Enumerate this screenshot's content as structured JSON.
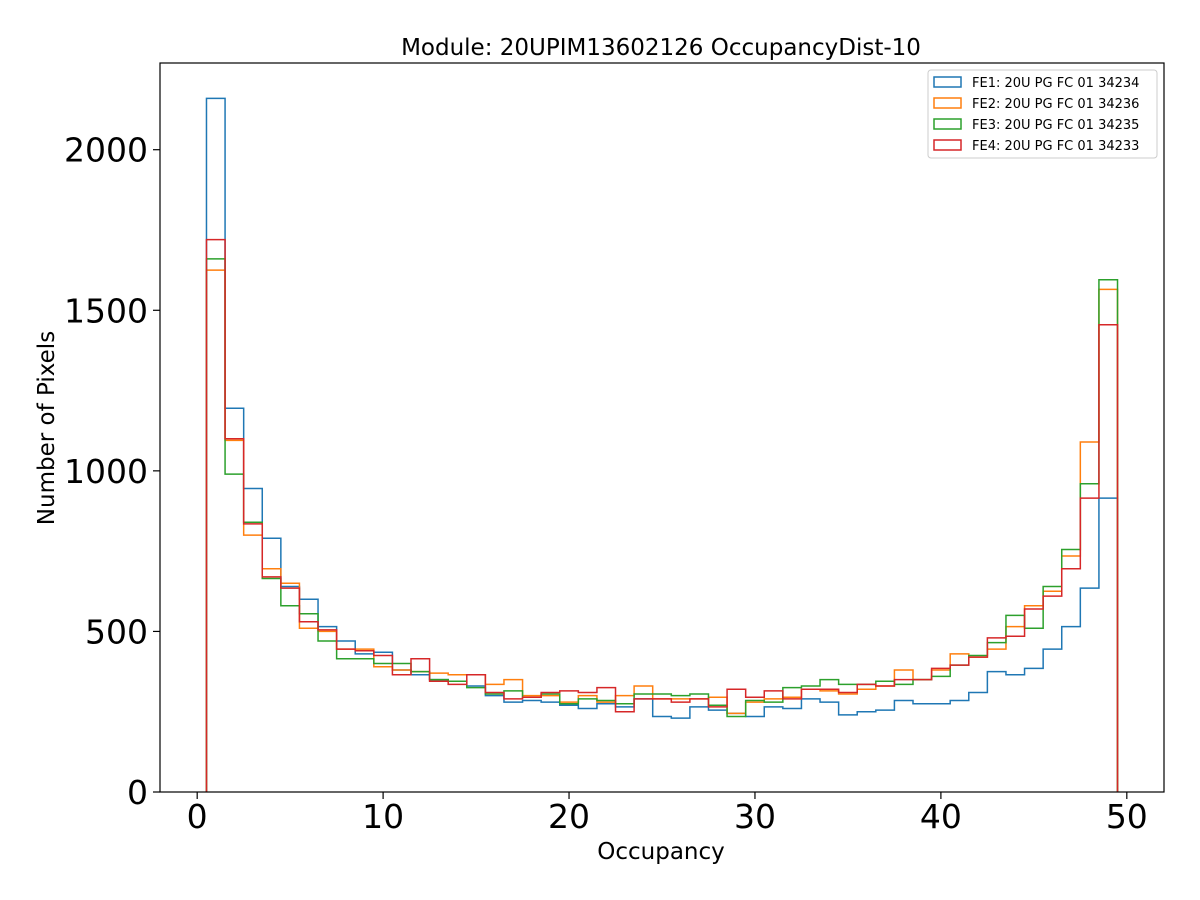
{
  "chart_data": {
    "type": "step-histogram",
    "title": "Module: 20UPIM13602126 OccupancyDist-10",
    "xlabel": "Occupancy",
    "ylabel": "Number of Pixels",
    "xlim": [
      -2,
      52
    ],
    "ylim": [
      0,
      2270
    ],
    "x_ticks": [
      0,
      10,
      20,
      30,
      40,
      50
    ],
    "y_ticks": [
      0,
      500,
      1000,
      1500,
      2000
    ],
    "bin_edges_start": 0.5,
    "bin_width": 1,
    "bin_count": 49,
    "legend_position": "top-right",
    "grid": false,
    "series": [
      {
        "name": "FE1: 20U PG FC 01 34234",
        "color": "#1f77b4",
        "values": [
          2160,
          1195,
          945,
          790,
          640,
          600,
          515,
          470,
          430,
          435,
          380,
          365,
          350,
          345,
          330,
          300,
          280,
          285,
          280,
          270,
          260,
          275,
          265,
          290,
          235,
          230,
          265,
          255,
          245,
          235,
          265,
          260,
          290,
          280,
          240,
          250,
          255,
          285,
          275,
          275,
          285,
          310,
          375,
          365,
          385,
          445,
          515,
          635,
          915
        ]
      },
      {
        "name": "FE2: 20U PG FC 01 34236",
        "color": "#ff7f0e",
        "values": [
          1625,
          1095,
          800,
          695,
          650,
          510,
          500,
          445,
          445,
          390,
          380,
          375,
          370,
          365,
          365,
          335,
          350,
          300,
          300,
          280,
          300,
          280,
          300,
          330,
          290,
          290,
          290,
          295,
          245,
          280,
          290,
          295,
          320,
          315,
          305,
          320,
          330,
          380,
          350,
          380,
          430,
          420,
          445,
          515,
          580,
          625,
          735,
          1090,
          1565
        ]
      },
      {
        "name": "FE3: 20U PG FC 01 34235",
        "color": "#2ca02c",
        "values": [
          1660,
          990,
          840,
          665,
          580,
          555,
          470,
          415,
          415,
          400,
          400,
          375,
          350,
          345,
          325,
          305,
          315,
          295,
          305,
          275,
          290,
          285,
          275,
          305,
          305,
          300,
          305,
          270,
          235,
          285,
          280,
          325,
          330,
          350,
          335,
          335,
          345,
          335,
          350,
          360,
          395,
          425,
          465,
          550,
          510,
          640,
          755,
          960,
          1595
        ]
      },
      {
        "name": "FE4: 20U PG FC 01 34233",
        "color": "#d62728",
        "values": [
          1720,
          1100,
          835,
          670,
          635,
          530,
          505,
          445,
          440,
          425,
          365,
          415,
          345,
          335,
          365,
          310,
          290,
          295,
          310,
          315,
          310,
          325,
          250,
          290,
          290,
          280,
          290,
          265,
          320,
          295,
          315,
          290,
          320,
          320,
          310,
          335,
          330,
          350,
          350,
          385,
          395,
          420,
          480,
          485,
          570,
          610,
          695,
          915,
          1455
        ]
      }
    ]
  }
}
